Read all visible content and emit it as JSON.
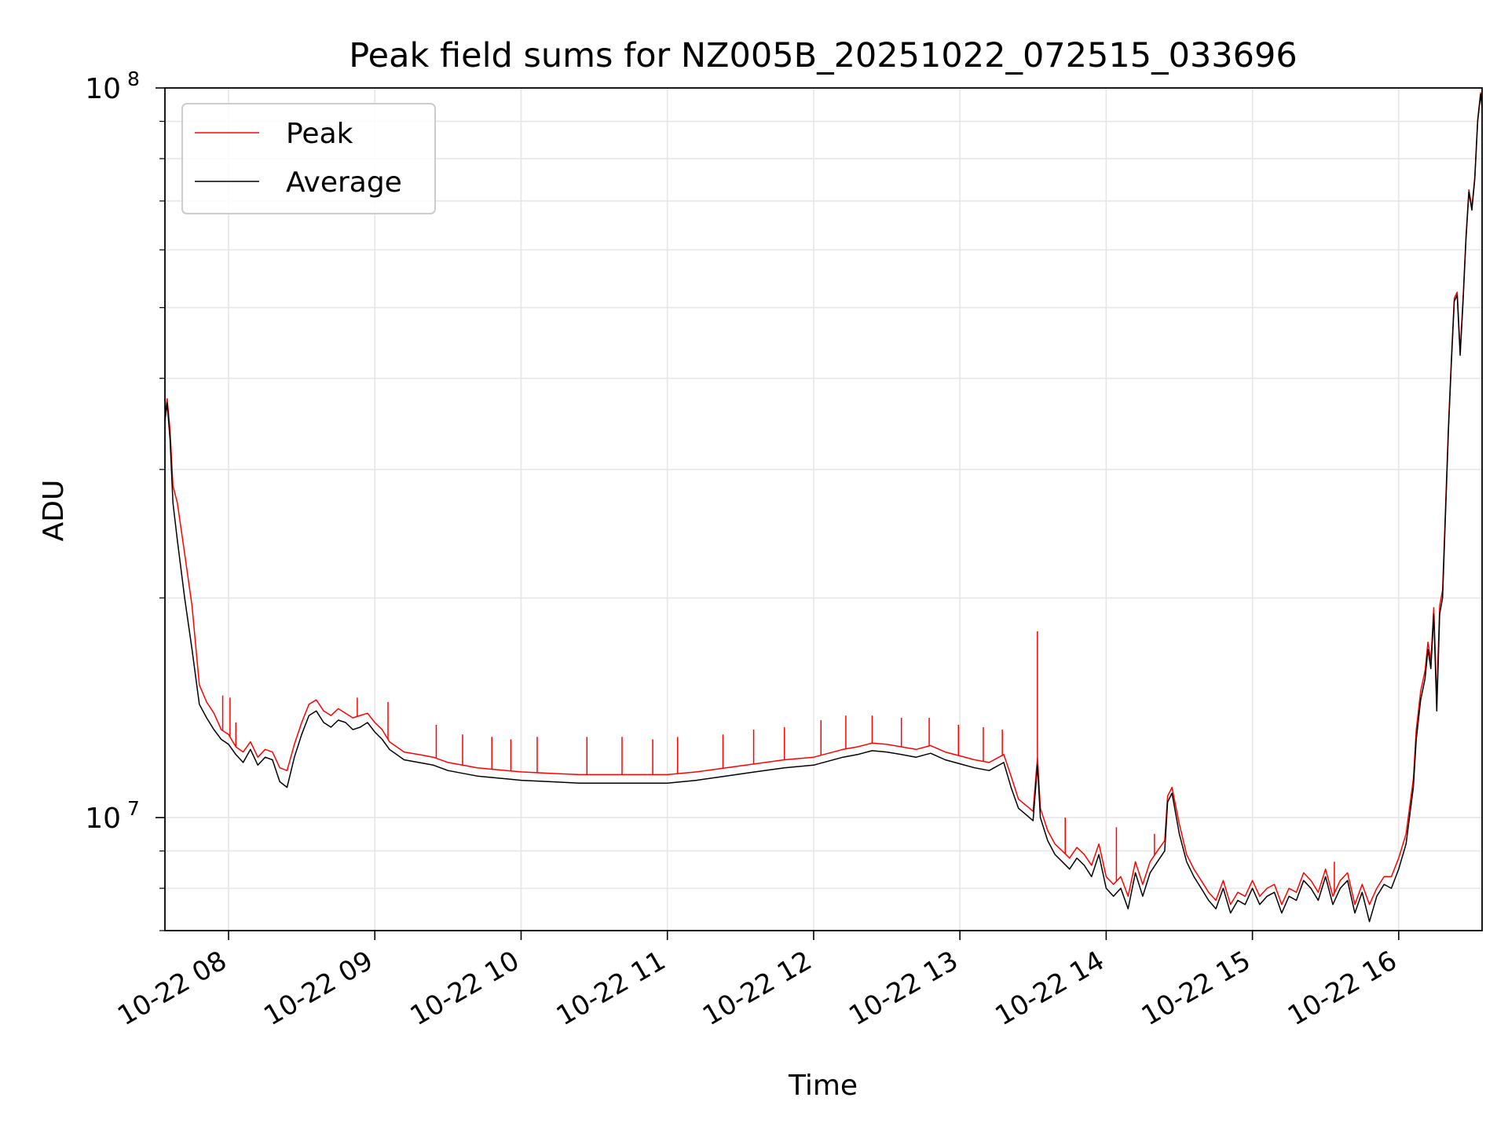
{
  "chart_data": {
    "type": "line",
    "title": "Peak field sums for NZ005B_20251022_072515_033696",
    "xlabel": "Time",
    "ylabel": "ADU",
    "yscale": "log",
    "ylim": [
      7000000,
      100000000
    ],
    "xlim_hours": [
      7.565,
      16.57
    ],
    "grid": true,
    "legend_position": "upper-left",
    "x_ticks": [
      {
        "value": 8,
        "label": "10-22 08"
      },
      {
        "value": 9,
        "label": "10-22 09"
      },
      {
        "value": 10,
        "label": "10-22 10"
      },
      {
        "value": 11,
        "label": "10-22 11"
      },
      {
        "value": 12,
        "label": "10-22 12"
      },
      {
        "value": 13,
        "label": "10-22 13"
      },
      {
        "value": 14,
        "label": "10-22 14"
      },
      {
        "value": 15,
        "label": "10-22 15"
      },
      {
        "value": 16,
        "label": "10-22 16"
      }
    ],
    "y_ticks": [
      {
        "value": 10000000,
        "base": "10",
        "exp": "7"
      },
      {
        "value": 100000000,
        "base": "10",
        "exp": "8"
      }
    ],
    "y_minor_ticks": [
      7000000,
      8000000,
      9000000,
      20000000,
      30000000,
      40000000,
      50000000,
      60000000,
      70000000,
      80000000,
      90000000
    ],
    "series": [
      {
        "name": "Average",
        "color": "#000000",
        "x_hours": [
          7.565,
          7.58,
          7.6,
          7.62,
          7.65,
          7.7,
          7.75,
          7.8,
          7.85,
          7.9,
          7.95,
          8.0,
          8.05,
          8.1,
          8.15,
          8.2,
          8.25,
          8.3,
          8.35,
          8.4,
          8.45,
          8.5,
          8.55,
          8.6,
          8.65,
          8.7,
          8.75,
          8.8,
          8.85,
          8.9,
          8.95,
          9.0,
          9.05,
          9.1,
          9.2,
          9.3,
          9.4,
          9.5,
          9.6,
          9.7,
          9.8,
          9.9,
          10.0,
          10.2,
          10.4,
          10.6,
          10.8,
          11.0,
          11.2,
          11.4,
          11.6,
          11.8,
          12.0,
          12.2,
          12.3,
          12.4,
          12.5,
          12.6,
          12.7,
          12.8,
          12.9,
          13.0,
          13.1,
          13.2,
          13.3,
          13.35,
          13.4,
          13.45,
          13.5,
          13.53,
          13.55,
          13.6,
          13.65,
          13.7,
          13.75,
          13.8,
          13.85,
          13.9,
          13.95,
          14.0,
          14.05,
          14.1,
          14.15,
          14.2,
          14.25,
          14.3,
          14.35,
          14.4,
          14.42,
          14.45,
          14.5,
          14.55,
          14.6,
          14.65,
          14.7,
          14.75,
          14.8,
          14.85,
          14.9,
          14.95,
          15.0,
          15.05,
          15.1,
          15.15,
          15.2,
          15.25,
          15.3,
          15.35,
          15.4,
          15.45,
          15.5,
          15.55,
          15.6,
          15.65,
          15.7,
          15.75,
          15.8,
          15.85,
          15.9,
          15.95,
          16.0,
          16.05,
          16.1,
          16.12,
          16.15,
          16.18,
          16.2,
          16.22,
          16.24,
          16.26,
          16.28,
          16.3,
          16.32,
          16.34,
          16.36,
          16.38,
          16.4,
          16.42,
          16.44,
          16.46,
          16.48,
          16.5,
          16.52,
          16.54,
          16.56,
          16.57
        ],
        "values": [
          35000000,
          37000000,
          33000000,
          27000000,
          24000000,
          20000000,
          17000000,
          14300000,
          13700000,
          13200000,
          12800000,
          12600000,
          12200000,
          11900000,
          12400000,
          11800000,
          12100000,
          12000000,
          11200000,
          11000000,
          12100000,
          13000000,
          13800000,
          14000000,
          13500000,
          13300000,
          13600000,
          13500000,
          13200000,
          13300000,
          13500000,
          13100000,
          12800000,
          12400000,
          12000000,
          11900000,
          11800000,
          11600000,
          11500000,
          11400000,
          11350000,
          11300000,
          11250000,
          11200000,
          11150000,
          11150000,
          11150000,
          11150000,
          11250000,
          11400000,
          11550000,
          11700000,
          11800000,
          12100000,
          12200000,
          12350000,
          12300000,
          12200000,
          12100000,
          12250000,
          12000000,
          11850000,
          11700000,
          11600000,
          11900000,
          11000000,
          10300000,
          10100000,
          9900000,
          11800000,
          10000000,
          9300000,
          8900000,
          8700000,
          8500000,
          8800000,
          8600000,
          8300000,
          8900000,
          8000000,
          7800000,
          8000000,
          7500000,
          8400000,
          7800000,
          8400000,
          8700000,
          9000000,
          10500000,
          10800000,
          9500000,
          8700000,
          8300000,
          8000000,
          7700000,
          7500000,
          8000000,
          7400000,
          7700000,
          7600000,
          8000000,
          7600000,
          7800000,
          7900000,
          7400000,
          7800000,
          7700000,
          8200000,
          8000000,
          7700000,
          8300000,
          7600000,
          8000000,
          8200000,
          7400000,
          7900000,
          7200000,
          7800000,
          8100000,
          8000000,
          8500000,
          9200000,
          11000000,
          12800000,
          14500000,
          15500000,
          17000000,
          16000000,
          19000000,
          14000000,
          19000000,
          20000000,
          26000000,
          34000000,
          42000000,
          51000000,
          52000000,
          43000000,
          51000000,
          62000000,
          72000000,
          68000000,
          75000000,
          90000000,
          98000000,
          94000000
        ]
      },
      {
        "name": "Peak",
        "color": "#ff0000",
        "x_hours": [
          7.565,
          7.58,
          7.6,
          7.62,
          7.65,
          7.7,
          7.75,
          7.8,
          7.85,
          7.9,
          7.95,
          8.0,
          8.05,
          8.1,
          8.15,
          8.2,
          8.25,
          8.3,
          8.35,
          8.4,
          8.45,
          8.5,
          8.55,
          8.6,
          8.65,
          8.7,
          8.75,
          8.8,
          8.85,
          8.9,
          8.95,
          9.0,
          9.05,
          9.1,
          9.2,
          9.3,
          9.4,
          9.5,
          9.6,
          9.7,
          9.8,
          9.9,
          10.0,
          10.2,
          10.4,
          10.6,
          10.8,
          11.0,
          11.2,
          11.4,
          11.6,
          11.8,
          12.0,
          12.2,
          12.3,
          12.4,
          12.5,
          12.6,
          12.7,
          12.8,
          12.9,
          13.0,
          13.1,
          13.2,
          13.3,
          13.35,
          13.4,
          13.45,
          13.5,
          13.53,
          13.55,
          13.6,
          13.65,
          13.7,
          13.75,
          13.8,
          13.85,
          13.9,
          13.95,
          14.0,
          14.05,
          14.1,
          14.15,
          14.2,
          14.25,
          14.3,
          14.35,
          14.4,
          14.42,
          14.45,
          14.5,
          14.55,
          14.6,
          14.65,
          14.7,
          14.75,
          14.8,
          14.85,
          14.9,
          14.95,
          15.0,
          15.05,
          15.1,
          15.15,
          15.2,
          15.25,
          15.3,
          15.35,
          15.4,
          15.45,
          15.5,
          15.55,
          15.6,
          15.65,
          15.7,
          15.75,
          15.8,
          15.85,
          15.9,
          15.95,
          16.0,
          16.05,
          16.1,
          16.12,
          16.15,
          16.18,
          16.2,
          16.22,
          16.24,
          16.26,
          16.28,
          16.3,
          16.32,
          16.34,
          16.36,
          16.38,
          16.4,
          16.42,
          16.44,
          16.46,
          16.48,
          16.5,
          16.52,
          16.54,
          16.56,
          16.57
        ],
        "values": [
          35500000,
          37500000,
          34000000,
          28500000,
          27000000,
          23000000,
          19500000,
          15200000,
          14400000,
          13900000,
          13200000,
          13000000,
          12500000,
          12300000,
          12700000,
          12100000,
          12400000,
          12300000,
          11700000,
          11600000,
          12600000,
          13500000,
          14300000,
          14500000,
          14000000,
          13800000,
          14100000,
          13900000,
          13700000,
          13800000,
          13900000,
          13500000,
          13200000,
          12700000,
          12300000,
          12200000,
          12100000,
          11900000,
          11800000,
          11700000,
          11650000,
          11600000,
          11550000,
          11500000,
          11450000,
          11450000,
          11450000,
          11450000,
          11550000,
          11700000,
          11850000,
          12000000,
          12100000,
          12400000,
          12500000,
          12650000,
          12600000,
          12500000,
          12400000,
          12550000,
          12300000,
          12150000,
          12000000,
          11900000,
          12200000,
          11400000,
          10600000,
          10400000,
          10200000,
          12100000,
          10300000,
          9600000,
          9200000,
          9000000,
          8800000,
          9100000,
          8900000,
          8600000,
          9200000,
          8300000,
          8100000,
          8300000,
          7800000,
          8700000,
          8100000,
          8700000,
          9000000,
          9300000,
          10700000,
          11000000,
          9800000,
          8900000,
          8500000,
          8200000,
          7900000,
          7700000,
          8200000,
          7600000,
          7900000,
          7800000,
          8200000,
          7800000,
          8000000,
          8100000,
          7600000,
          8000000,
          7900000,
          8400000,
          8200000,
          7900000,
          8500000,
          7800000,
          8200000,
          8400000,
          7600000,
          8100000,
          7600000,
          8000000,
          8300000,
          8300000,
          8800000,
          9500000,
          11300000,
          13200000,
          14900000,
          15900000,
          17400000,
          16400000,
          19400000,
          14500000,
          19500000,
          20500000,
          26500000,
          34500000,
          42500000,
          51500000,
          52500000,
          43500000,
          51500000,
          62500000,
          72500000,
          68500000,
          75500000,
          90500000,
          98500000,
          94500000
        ],
        "spikes": [
          {
            "x_hours": 7.96,
            "value": 14700000
          },
          {
            "x_hours": 8.01,
            "value": 14600000
          },
          {
            "x_hours": 8.05,
            "value": 13500000
          },
          {
            "x_hours": 8.88,
            "value": 14600000
          },
          {
            "x_hours": 9.09,
            "value": 14400000
          },
          {
            "x_hours": 9.42,
            "value": 13400000
          },
          {
            "x_hours": 9.6,
            "value": 13000000
          },
          {
            "x_hours": 9.8,
            "value": 12900000
          },
          {
            "x_hours": 9.93,
            "value": 12800000
          },
          {
            "x_hours": 10.11,
            "value": 12900000
          },
          {
            "x_hours": 10.45,
            "value": 12900000
          },
          {
            "x_hours": 10.69,
            "value": 12900000
          },
          {
            "x_hours": 10.9,
            "value": 12800000
          },
          {
            "x_hours": 11.07,
            "value": 12900000
          },
          {
            "x_hours": 11.38,
            "value": 13000000
          },
          {
            "x_hours": 11.59,
            "value": 13200000
          },
          {
            "x_hours": 11.8,
            "value": 13300000
          },
          {
            "x_hours": 12.05,
            "value": 13600000
          },
          {
            "x_hours": 12.22,
            "value": 13800000
          },
          {
            "x_hours": 12.4,
            "value": 13800000
          },
          {
            "x_hours": 12.6,
            "value": 13700000
          },
          {
            "x_hours": 12.79,
            "value": 13700000
          },
          {
            "x_hours": 12.99,
            "value": 13400000
          },
          {
            "x_hours": 13.16,
            "value": 13300000
          },
          {
            "x_hours": 13.29,
            "value": 13200000
          },
          {
            "x_hours": 13.53,
            "value": 18000000
          },
          {
            "x_hours": 13.72,
            "value": 10000000
          },
          {
            "x_hours": 14.07,
            "value": 9700000
          },
          {
            "x_hours": 14.33,
            "value": 9500000
          },
          {
            "x_hours": 15.56,
            "value": 8700000
          }
        ]
      }
    ],
    "legend": [
      {
        "label": "Peak",
        "color": "#ff0000"
      },
      {
        "label": "Average",
        "color": "#000000"
      }
    ]
  }
}
